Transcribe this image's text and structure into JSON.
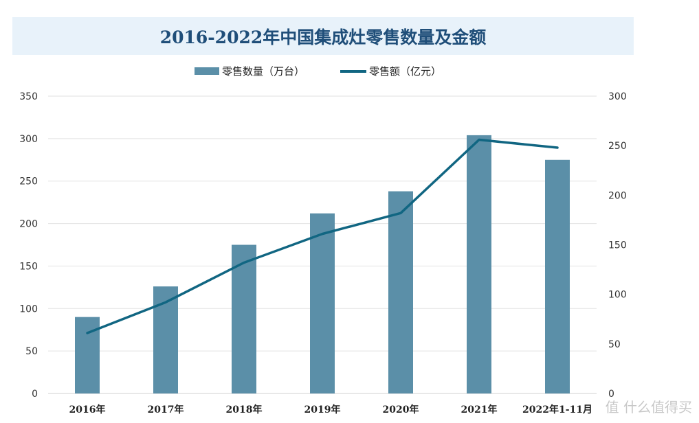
{
  "chart_data": {
    "type": "bar+line",
    "title": "2016-2022年中国集成灶零售数量及金额",
    "categories": [
      "2016年",
      "2017年",
      "2018年",
      "2019年",
      "2020年",
      "2021年",
      "2022年1-11月"
    ],
    "series": [
      {
        "name": "零售数量（万台）",
        "type": "bar",
        "axis": "left",
        "color": "#5b8fa8",
        "values": [
          90,
          126,
          175,
          212,
          238,
          304,
          275
        ]
      },
      {
        "name": "零售额（亿元）",
        "type": "line",
        "axis": "right",
        "color": "#116682",
        "values": [
          61,
          92,
          132,
          161,
          182,
          256,
          248
        ]
      }
    ],
    "y_left": {
      "range": [
        0,
        350
      ],
      "ticks": [
        0,
        50,
        100,
        150,
        200,
        250,
        300,
        350
      ]
    },
    "y_right": {
      "range": [
        0,
        300
      ],
      "ticks": [
        0,
        50,
        100,
        150,
        200,
        250,
        300
      ]
    },
    "grid": true,
    "legend": "top-center"
  },
  "watermark": "值 什么值得买"
}
